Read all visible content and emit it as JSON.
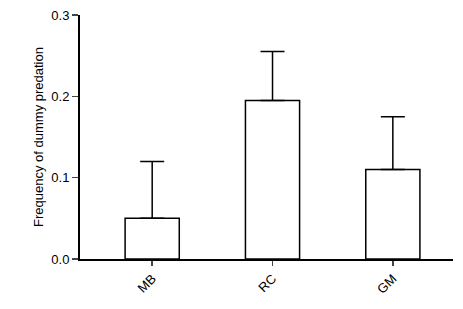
{
  "chart_data": {
    "type": "bar",
    "y_label": "Frequency of dummy predation",
    "categories": [
      "MB",
      "RC",
      "GM"
    ],
    "values": [
      0.05,
      0.195,
      0.11
    ],
    "errors": [
      0.07,
      0.06,
      0.065
    ],
    "color": "#ffffff",
    "ylim": [
      0,
      0.3
    ],
    "yticks": [
      {
        "value": 0,
        "label": "0.0"
      },
      0.1,
      0.2,
      0.3
    ],
    "grid": false
  }
}
